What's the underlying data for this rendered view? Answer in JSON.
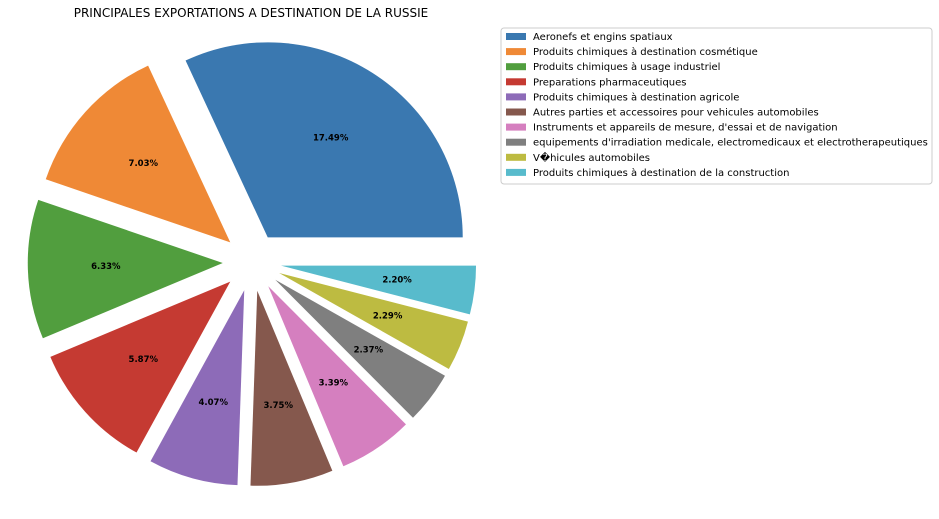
{
  "chart_data": {
    "type": "pie",
    "title": "PRINCIPALES EXPORTATIONS A DESTINATION DE LA RUSSIE",
    "legend_position": "upper right, outside plot",
    "start_angle_deg": 0,
    "direction": "counterclockwise",
    "explode": 0.15,
    "slices": [
      {
        "label": "Aeronefs et engins spatiaux",
        "value": 17.49,
        "pct_label": "17.49%",
        "color": "#3a78b0"
      },
      {
        "label": "Produits chimiques à destination cosmétique",
        "value": 7.03,
        "pct_label": "7.03%",
        "color": "#ef8936"
      },
      {
        "label": "Produits chimiques à usage industriel",
        "value": 6.33,
        "pct_label": "6.33%",
        "color": "#519e3e"
      },
      {
        "label": "Preparations pharmaceutiques",
        "value": 5.87,
        "pct_label": "5.87%",
        "color": "#c53a32"
      },
      {
        "label": "Produits chimiques à destination agricole",
        "value": 4.07,
        "pct_label": "4.07%",
        "color": "#8d6bb8"
      },
      {
        "label": "Autres parties et accessoires pour vehicules automobiles",
        "value": 3.75,
        "pct_label": "3.75%",
        "color": "#85584d"
      },
      {
        "label": "Instruments et appareils de mesure, d'essai et de navigation",
        "value": 3.39,
        "pct_label": "3.39%",
        "color": "#d57fbf"
      },
      {
        "label": "equipements d'irradiation medicale, electromedicaux et electrotherapeutiques",
        "value": 2.37,
        "pct_label": "2.37%",
        "color": "#7f7f7f"
      },
      {
        "label": "V�hicules automobiles",
        "value": 2.29,
        "pct_label": "2.29%",
        "color": "#bdbb41"
      },
      {
        "label": "Produits chimiques à destination de la construction",
        "value": 2.2,
        "pct_label": "2.20%",
        "color": "#58bbcc"
      }
    ]
  }
}
